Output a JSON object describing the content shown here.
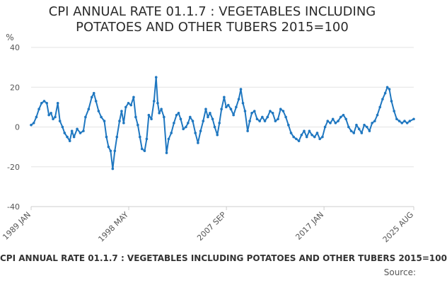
{
  "chart_data": {
    "type": "line",
    "title": "CPI ANNUAL RATE 01.1.7 : VEGETABLES INCLUDING POTATOES AND OTHER TUBERS 2015=100",
    "title_lines": [
      "CPI ANNUAL RATE 01.1.7 : VEGETABLES INCLUDING",
      "POTATOES AND OTHER TUBERS 2015=100"
    ],
    "ylabel": "%",
    "xlabel": "",
    "ylim": [
      -40,
      40
    ],
    "y_ticks": [
      40,
      20,
      0,
      -20,
      -40
    ],
    "y_tick_labels": [
      "40",
      "20",
      "0",
      "-20",
      "-40"
    ],
    "x_ticks": [
      {
        "label": "1989 JAN",
        "t": 1989.0
      },
      {
        "label": "1998 MAY",
        "t": 1998.33
      },
      {
        "label": "2007 SEP",
        "t": 2007.67
      },
      {
        "label": "2017 JAN",
        "t": 2017.0
      },
      {
        "label": "2025 AUG",
        "t": 2025.58
      }
    ],
    "x_range": [
      1989.0,
      2025.58
    ],
    "grid": true,
    "legend": "bottom",
    "series": [
      {
        "name": "CPI ANNUAL RATE 01.1.7 : VEGETABLES INCLUDING POTATOES AND OTHER TUBERS 2015=100",
        "color": "#1f77c0",
        "points": [
          [
            1989.0,
            1
          ],
          [
            1989.25,
            2
          ],
          [
            1989.5,
            5
          ],
          [
            1989.75,
            9
          ],
          [
            1990.0,
            12
          ],
          [
            1990.25,
            13
          ],
          [
            1990.5,
            12
          ],
          [
            1990.7,
            6
          ],
          [
            1990.9,
            7
          ],
          [
            1991.1,
            4
          ],
          [
            1991.3,
            5
          ],
          [
            1991.55,
            12
          ],
          [
            1991.75,
            3
          ],
          [
            1992.0,
            0
          ],
          [
            1992.2,
            -3
          ],
          [
            1992.45,
            -5
          ],
          [
            1992.7,
            -7
          ],
          [
            1992.9,
            -2
          ],
          [
            1993.1,
            -5
          ],
          [
            1993.4,
            -1
          ],
          [
            1993.7,
            -3
          ],
          [
            1994.0,
            -2
          ],
          [
            1994.2,
            5
          ],
          [
            1994.5,
            9
          ],
          [
            1994.8,
            15
          ],
          [
            1995.0,
            17
          ],
          [
            1995.2,
            13
          ],
          [
            1995.45,
            8
          ],
          [
            1995.7,
            5
          ],
          [
            1996.0,
            3
          ],
          [
            1996.2,
            -5
          ],
          [
            1996.4,
            -10
          ],
          [
            1996.6,
            -12
          ],
          [
            1996.8,
            -21
          ],
          [
            1997.0,
            -12
          ],
          [
            1997.2,
            -5
          ],
          [
            1997.45,
            3
          ],
          [
            1997.65,
            8
          ],
          [
            1997.85,
            2
          ],
          [
            1998.05,
            10
          ],
          [
            1998.3,
            12
          ],
          [
            1998.55,
            11
          ],
          [
            1998.8,
            15
          ],
          [
            1999.0,
            5
          ],
          [
            1999.2,
            1
          ],
          [
            1999.4,
            -5
          ],
          [
            1999.6,
            -11
          ],
          [
            1999.85,
            -12
          ],
          [
            2000.05,
            -6
          ],
          [
            2000.25,
            6
          ],
          [
            2000.5,
            4
          ],
          [
            2000.75,
            13
          ],
          [
            2000.95,
            25
          ],
          [
            2001.1,
            12
          ],
          [
            2001.25,
            7
          ],
          [
            2001.45,
            9
          ],
          [
            2001.7,
            5
          ],
          [
            2001.95,
            -13
          ],
          [
            2002.15,
            -6
          ],
          [
            2002.4,
            -3
          ],
          [
            2002.65,
            2
          ],
          [
            2002.9,
            6
          ],
          [
            2003.1,
            7
          ],
          [
            2003.3,
            4
          ],
          [
            2003.55,
            -1
          ],
          [
            2003.8,
            0
          ],
          [
            2004.0,
            2
          ],
          [
            2004.2,
            5
          ],
          [
            2004.45,
            3
          ],
          [
            2004.7,
            -3
          ],
          [
            2004.95,
            -8
          ],
          [
            2005.2,
            -2
          ],
          [
            2005.45,
            3
          ],
          [
            2005.7,
            9
          ],
          [
            2005.9,
            5
          ],
          [
            2006.1,
            7
          ],
          [
            2006.35,
            4
          ],
          [
            2006.55,
            0
          ],
          [
            2006.8,
            -4
          ],
          [
            2007.0,
            2
          ],
          [
            2007.2,
            9
          ],
          [
            2007.45,
            15
          ],
          [
            2007.65,
            10
          ],
          [
            2007.85,
            11
          ],
          [
            2008.1,
            9
          ],
          [
            2008.35,
            6
          ],
          [
            2008.6,
            10
          ],
          [
            2008.85,
            14
          ],
          [
            2009.05,
            19
          ],
          [
            2009.25,
            12
          ],
          [
            2009.45,
            8
          ],
          [
            2009.7,
            -2
          ],
          [
            2009.9,
            3
          ],
          [
            2010.1,
            7
          ],
          [
            2010.35,
            8
          ],
          [
            2010.6,
            4
          ],
          [
            2010.85,
            3
          ],
          [
            2011.1,
            5
          ],
          [
            2011.35,
            3
          ],
          [
            2011.6,
            5
          ],
          [
            2011.85,
            8
          ],
          [
            2012.1,
            7
          ],
          [
            2012.35,
            3
          ],
          [
            2012.6,
            4
          ],
          [
            2012.85,
            9
          ],
          [
            2013.1,
            8
          ],
          [
            2013.35,
            5
          ],
          [
            2013.6,
            1
          ],
          [
            2013.85,
            -3
          ],
          [
            2014.1,
            -5
          ],
          [
            2014.35,
            -6
          ],
          [
            2014.6,
            -7
          ],
          [
            2014.85,
            -4
          ],
          [
            2015.1,
            -2
          ],
          [
            2015.35,
            -5
          ],
          [
            2015.6,
            -2
          ],
          [
            2015.85,
            -4
          ],
          [
            2016.1,
            -5
          ],
          [
            2016.35,
            -3
          ],
          [
            2016.6,
            -6
          ],
          [
            2016.85,
            -5
          ],
          [
            2017.1,
            0
          ],
          [
            2017.35,
            3
          ],
          [
            2017.6,
            2
          ],
          [
            2017.85,
            4
          ],
          [
            2018.1,
            2
          ],
          [
            2018.35,
            3
          ],
          [
            2018.6,
            5
          ],
          [
            2018.85,
            6
          ],
          [
            2019.1,
            4
          ],
          [
            2019.35,
            0
          ],
          [
            2019.6,
            -2
          ],
          [
            2019.85,
            -3
          ],
          [
            2020.1,
            1
          ],
          [
            2020.35,
            -1
          ],
          [
            2020.6,
            -3
          ],
          [
            2020.85,
            1
          ],
          [
            2021.1,
            0
          ],
          [
            2021.35,
            -2
          ],
          [
            2021.6,
            2
          ],
          [
            2021.85,
            3
          ],
          [
            2022.1,
            6
          ],
          [
            2022.35,
            10
          ],
          [
            2022.6,
            14
          ],
          [
            2022.85,
            17
          ],
          [
            2023.05,
            20
          ],
          [
            2023.25,
            19
          ],
          [
            2023.45,
            13
          ],
          [
            2023.7,
            8
          ],
          [
            2023.95,
            4
          ],
          [
            2024.2,
            3
          ],
          [
            2024.45,
            2
          ],
          [
            2024.7,
            3
          ],
          [
            2024.95,
            2
          ],
          [
            2025.2,
            3
          ],
          [
            2025.58,
            4
          ]
        ]
      }
    ],
    "legend_label": "CPI ANNUAL RATE 01.1.7 : VEGETABLES INCLUDING POTATOES AND OTHER TUBERS 2015=100",
    "source_label": "Source:",
    "colors": {
      "line": "#1f77c0",
      "grid": "#e3e3e3",
      "axis": "#cccccc",
      "tick_text": "#555555",
      "title": "#2b2b2b"
    }
  }
}
